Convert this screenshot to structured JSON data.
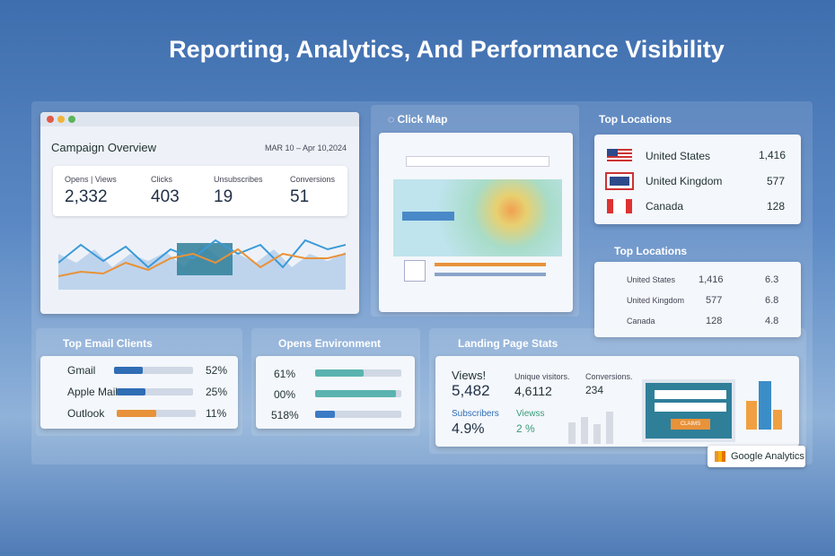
{
  "header": {
    "title": "Reporting, Analytics, And Performance Visibility"
  },
  "campaign_overview": {
    "title": "Campaign Overview",
    "date_range": "MAR 10 – Apr 10,2024",
    "metrics": [
      {
        "label": "Opens | Views",
        "value": "2,332"
      },
      {
        "label": "Clicks",
        "value": "403"
      },
      {
        "label": "Unsubscribes",
        "value": "19"
      },
      {
        "label": "Conversions",
        "value": "51"
      }
    ]
  },
  "click_map": {
    "title": "Click Map"
  },
  "top_locations": {
    "title": "Top Locations",
    "rows": [
      {
        "country": "United States",
        "count": "1,416"
      },
      {
        "country": "United Kingdom",
        "count": "577"
      },
      {
        "country": "Canada",
        "count": "128"
      }
    ]
  },
  "top_locations_detail": {
    "title": "Top Locations",
    "rows": [
      {
        "country": "United States",
        "count": "1,416",
        "change": "6.3"
      },
      {
        "country": "United Kingdom",
        "count": "577",
        "change": "6.8"
      },
      {
        "country": "Canada",
        "count": "128",
        "change": "4.8"
      }
    ]
  },
  "email_clients": {
    "title": "Top Email Clients",
    "rows": [
      {
        "name": "Gmail",
        "percent": "52%"
      },
      {
        "name": "Apple Mail",
        "percent": "25%"
      },
      {
        "name": "Outlook",
        "percent": "11%"
      }
    ]
  },
  "opens_environment": {
    "title": "Opens Environment",
    "rows": [
      "61%",
      "00%",
      "518%"
    ]
  },
  "landing_page_stats": {
    "title": "Landing Page Stats",
    "stats": [
      {
        "label": "Views!",
        "value": "5,482"
      },
      {
        "label": "Unique visitors.",
        "value": "4,6112"
      },
      {
        "label": "Conversions.",
        "value": "234"
      },
      {
        "label": "Subscribers",
        "value": "4.9%"
      },
      {
        "label": "Viewss",
        "value": "2 %"
      }
    ],
    "button": "CLAIMS"
  },
  "badge": "Google Analytics"
}
